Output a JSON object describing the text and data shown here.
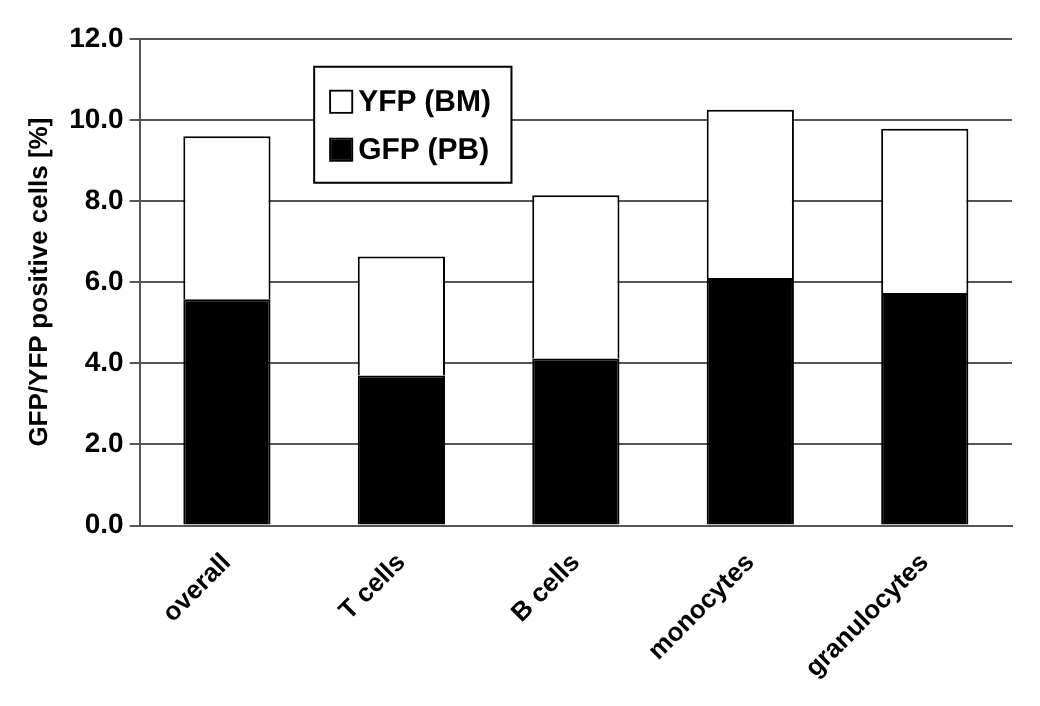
{
  "chart_data": {
    "type": "bar",
    "ylabel": "GFP/YFP positive cells [%]",
    "categories": [
      "overall",
      "T cells",
      "B cells",
      "monocytes",
      "granulocytes"
    ],
    "series": [
      {
        "name": "GFP (PB)",
        "color": "#000000",
        "values": [
          5.58,
          3.7,
          4.12,
          6.1,
          5.73
        ]
      },
      {
        "name": "YFP (BM)",
        "color": "#ffffff",
        "values": [
          4.02,
          2.93,
          4.02,
          4.15,
          4.05
        ]
      }
    ],
    "stacked": true,
    "ylim": [
      0,
      12
    ],
    "yticks": [
      {
        "value": 0,
        "label": "0.0"
      },
      {
        "value": 2,
        "label": "2.0"
      },
      {
        "value": 4,
        "label": "4.0"
      },
      {
        "value": 6,
        "label": "6.0"
      },
      {
        "value": 8,
        "label": "8.0"
      },
      {
        "value": 10,
        "label": "10.0"
      },
      {
        "value": 12,
        "label": "12.0"
      }
    ],
    "grid": "y",
    "legend": "top left"
  }
}
